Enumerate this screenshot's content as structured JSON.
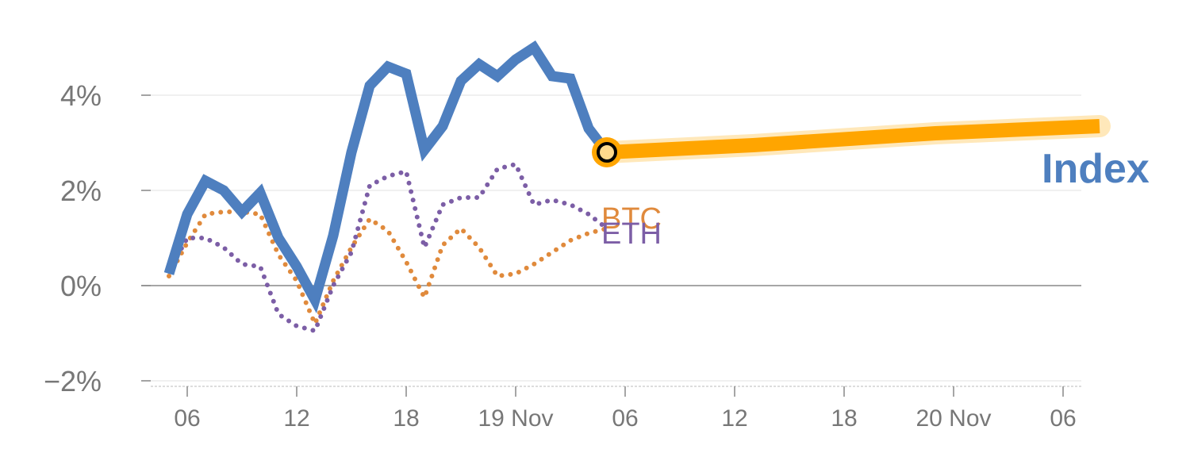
{
  "chart_data": {
    "type": "line",
    "x_tick_labels": [
      "06",
      "12",
      "18",
      "19 Nov",
      "06",
      "12",
      "18",
      "20 Nov",
      "06"
    ],
    "y_tick_labels": [
      "4%",
      "2%",
      "0%",
      "−2%"
    ],
    "y_ticks": [
      4,
      2,
      0,
      -2
    ],
    "ylim": [
      -2.1,
      5.4
    ],
    "x_unit": "hours from 18 Nov 00:00",
    "xlim": [
      27,
      80
    ],
    "grid": true,
    "series": [
      {
        "name": "Index",
        "style": "solid",
        "color": "#4e7fbf",
        "x": [
          29,
          30,
          31,
          32,
          33,
          34,
          35,
          36,
          37,
          38,
          39,
          40,
          41,
          42,
          43,
          44,
          45,
          46,
          47,
          48,
          49,
          50,
          51,
          52,
          53,
          54,
          55
        ],
        "values": [
          0.25,
          1.5,
          2.2,
          2.0,
          1.55,
          1.95,
          1.0,
          0.4,
          -0.3,
          1.05,
          2.8,
          4.2,
          4.6,
          4.45,
          2.85,
          3.35,
          4.3,
          4.65,
          4.4,
          4.75,
          5.0,
          4.4,
          4.35,
          3.3,
          2.8,
          null,
          null
        ]
      },
      {
        "name": "BTC",
        "style": "dotted",
        "color": "#e08a3c",
        "x": [
          29,
          30,
          31,
          32,
          33,
          34,
          35,
          36,
          37,
          38,
          39,
          40,
          41,
          42,
          43,
          44,
          45,
          46,
          47,
          48,
          49,
          50,
          51,
          52,
          53
        ],
        "values": [
          0.2,
          0.9,
          1.5,
          1.55,
          1.55,
          1.5,
          0.65,
          0.1,
          -0.8,
          0.1,
          0.8,
          1.4,
          1.15,
          0.5,
          -0.25,
          0.85,
          1.2,
          0.8,
          0.2,
          0.25,
          0.45,
          0.7,
          0.95,
          1.1,
          1.2
        ]
      },
      {
        "name": "ETH",
        "style": "dotted",
        "color": "#7c5ea6",
        "x": [
          29,
          30,
          31,
          32,
          33,
          34,
          35,
          36,
          37,
          38,
          39,
          40,
          41,
          42,
          43,
          44,
          45,
          46,
          47,
          48,
          49,
          50,
          51,
          52,
          53
        ],
        "values": [
          0.3,
          1.0,
          1.0,
          0.8,
          0.45,
          0.4,
          -0.6,
          -0.85,
          -0.95,
          0.0,
          0.7,
          2.1,
          2.3,
          2.4,
          0.8,
          1.7,
          1.85,
          1.85,
          2.45,
          2.55,
          1.7,
          1.8,
          1.7,
          1.5,
          1.2
        ]
      },
      {
        "name": "Index projection",
        "style": "thick",
        "color": "#ffa500",
        "x": [
          53,
          61,
          71,
          80
        ],
        "values": [
          2.8,
          2.95,
          3.2,
          3.35
        ]
      }
    ],
    "labels": {
      "index": "Index",
      "btc": "BTC",
      "eth": "ETH"
    }
  }
}
